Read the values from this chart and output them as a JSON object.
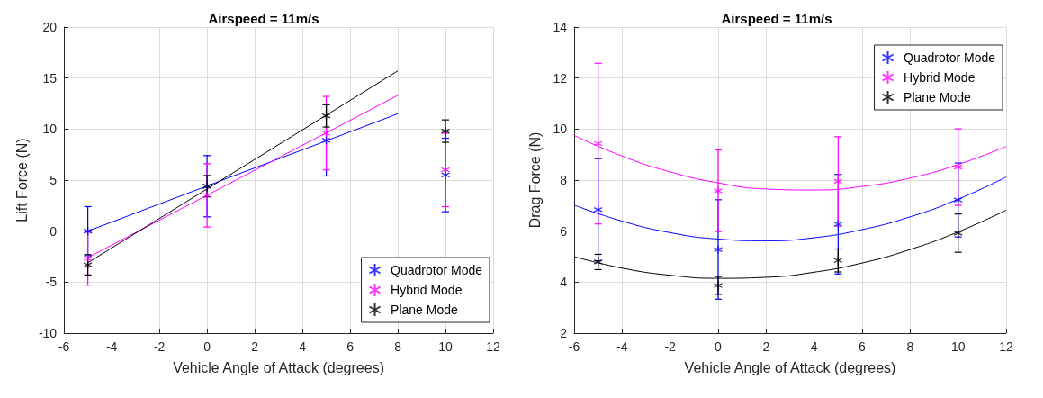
{
  "chart_data": [
    {
      "type": "scatter",
      "title": "Airspeed = 11m/s",
      "xlabel": "Vehicle Angle of Attack (degrees)",
      "ylabel": "Lift Force (N)",
      "xlim": [
        -6,
        12
      ],
      "xticks": [
        -6,
        -4,
        -2,
        0,
        2,
        4,
        6,
        8,
        10,
        12
      ],
      "ylim": [
        -10,
        20
      ],
      "yticks": [
        -10,
        -5,
        0,
        5,
        10,
        15,
        20
      ],
      "grid": true,
      "legend": "bottom right",
      "marker": "cross",
      "series": [
        {
          "type": "line",
          "marker": "none",
          "color": "#0000ff",
          "x": [
            -5,
            8
          ],
          "values": [
            0.0,
            11.5
          ]
        },
        {
          "type": "line",
          "marker": "none",
          "color": "#ff00ff",
          "x": [
            -5,
            8
          ],
          "values": [
            -2.6,
            13.3
          ]
        },
        {
          "type": "line",
          "marker": "none",
          "color": "#000000",
          "x": [
            -5,
            8
          ],
          "values": [
            -3.1,
            15.7
          ]
        },
        {
          "name": "Quadrotor Mode",
          "color": "#0000ff",
          "x": [
            -5,
            0,
            5,
            10
          ],
          "values": [
            0.0,
            4.4,
            8.9,
            5.5
          ],
          "errors": [
            2.4,
            3.0,
            3.5,
            3.6
          ]
        },
        {
          "name": "Hybrid Mode",
          "color": "#ff00ff",
          "x": [
            -5,
            0,
            5,
            10
          ],
          "values": [
            -2.7,
            3.5,
            9.6,
            6.0
          ],
          "errors": [
            2.6,
            3.1,
            3.6,
            3.6
          ]
        },
        {
          "name": "Plane Mode",
          "color": "#000000",
          "x": [
            -5,
            0,
            5,
            10
          ],
          "values": [
            -3.3,
            4.4,
            11.3,
            9.8
          ],
          "errors": [
            1.0,
            1.05,
            1.1,
            1.1
          ]
        }
      ]
    },
    {
      "type": "scatter",
      "title": "Airspeed = 11m/s",
      "xlabel": "Vehicle Angle of Attack (degrees)",
      "ylabel": "Drag Force (N)",
      "xlim": [
        -6,
        12
      ],
      "xticks": [
        -6,
        -4,
        -2,
        0,
        2,
        4,
        6,
        8,
        10,
        12
      ],
      "ylim": [
        2,
        14
      ],
      "yticks": [
        2,
        4,
        6,
        8,
        10,
        12,
        14
      ],
      "grid": true,
      "legend": "top right",
      "marker": "cross",
      "series": [
        {
          "type": "line",
          "marker": "none",
          "color": "#0000ff",
          "x": [
            -6,
            -4,
            -2,
            0,
            2,
            4,
            6,
            8,
            10,
            12
          ],
          "values": [
            7.02,
            6.39,
            5.94,
            5.69,
            5.62,
            5.74,
            6.06,
            6.56,
            7.25,
            8.12
          ]
        },
        {
          "type": "line",
          "marker": "none",
          "color": "#ff00ff",
          "x": [
            -6,
            -4,
            -2,
            0,
            2,
            4,
            6,
            8,
            10,
            12
          ],
          "values": [
            9.75,
            8.94,
            8.32,
            7.89,
            7.65,
            7.61,
            7.75,
            8.08,
            8.61,
            9.32
          ]
        },
        {
          "type": "line",
          "marker": "none",
          "color": "#000000",
          "x": [
            -6,
            -4,
            -2,
            0,
            2,
            4,
            6,
            8,
            10,
            12
          ],
          "values": [
            5.0,
            4.55,
            4.27,
            4.15,
            4.19,
            4.39,
            4.75,
            5.28,
            5.97,
            6.82
          ]
        },
        {
          "name": "Quadrotor Mode",
          "color": "#0000ff",
          "x": [
            -5,
            0,
            5,
            10
          ],
          "values": [
            6.84,
            5.28,
            6.27,
            7.22
          ],
          "errors": [
            2.0,
            1.95,
            1.95,
            1.45
          ]
        },
        {
          "name": "Hybrid Mode",
          "color": "#ff00ff",
          "x": [
            -5,
            0,
            5,
            10
          ],
          "values": [
            9.43,
            7.58,
            7.95,
            8.51
          ],
          "errors": [
            3.15,
            1.6,
            1.75,
            1.5
          ]
        },
        {
          "name": "Plane Mode",
          "color": "#000000",
          "x": [
            -5,
            0,
            5,
            10
          ],
          "values": [
            4.79,
            3.87,
            4.85,
            5.92
          ],
          "errors": [
            0.3,
            0.35,
            0.45,
            0.75
          ]
        }
      ]
    }
  ]
}
